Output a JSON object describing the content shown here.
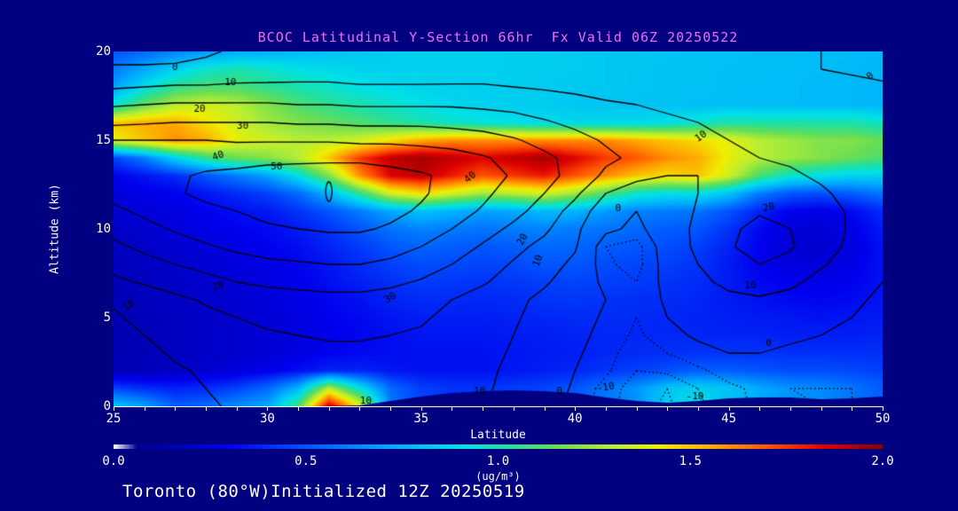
{
  "title": "BCOC Latitudinal Y-Section 66hr  Fx Valid 06Z 20250522",
  "footer": "Toronto (80°W)Initialized 12Z 20250519",
  "colors": {
    "background": "#000080",
    "title": "#ee6fee",
    "axis_text": "#ffffff",
    "contour_line": "#000000"
  },
  "axes": {
    "x": {
      "label": "Latitude",
      "min": 25,
      "max": 50,
      "major_ticks": [
        25,
        30,
        35,
        40,
        45,
        50
      ],
      "minor_step": 1
    },
    "y": {
      "label": "Altitude (km)",
      "min": 0,
      "max": 20,
      "major_ticks": [
        0,
        5,
        10,
        15,
        20
      ]
    }
  },
  "colorbar": {
    "min": 0.0,
    "max": 2.0,
    "tick_labels": [
      "0.0",
      "0.5",
      "1.0",
      "1.5",
      "2.0"
    ],
    "tick_values": [
      0.0,
      0.5,
      1.0,
      1.5,
      2.0
    ],
    "units": "(ug/m³)",
    "stops": [
      [
        0.0,
        "#ffffff"
      ],
      [
        0.06,
        "#000090"
      ],
      [
        0.3,
        "#0000ee"
      ],
      [
        0.5,
        "#0055ff"
      ],
      [
        0.72,
        "#00aaff"
      ],
      [
        0.9,
        "#00e0e8"
      ],
      [
        1.02,
        "#20e0a0"
      ],
      [
        1.15,
        "#66dd55"
      ],
      [
        1.3,
        "#b8ee33"
      ],
      [
        1.42,
        "#eeee00"
      ],
      [
        1.55,
        "#ffaa00"
      ],
      [
        1.7,
        "#ff5500"
      ],
      [
        1.85,
        "#dd0000"
      ],
      [
        2.0,
        "#880000"
      ]
    ]
  },
  "chart_data": {
    "type": "heatmap",
    "x_lats": [
      25,
      26,
      27,
      28,
      29,
      30,
      31,
      32,
      33,
      34,
      35,
      36,
      37,
      38,
      39,
      40,
      41,
      42,
      43,
      44,
      45,
      46,
      47,
      48,
      49,
      50
    ],
    "y_alts_top_down": [
      20,
      19,
      18,
      17,
      16,
      15,
      14,
      13,
      12,
      11,
      10,
      9,
      8,
      7,
      6,
      5,
      4,
      3,
      2,
      1,
      0
    ],
    "concentration_ugm3": [
      [
        0.5,
        0.55,
        0.62,
        0.68,
        0.72,
        0.75,
        0.78,
        0.8,
        0.82,
        0.84,
        0.85,
        0.85,
        0.85,
        0.84,
        0.84,
        0.83,
        0.82,
        0.82,
        0.81,
        0.8,
        0.8,
        0.79,
        0.79,
        0.78,
        0.78,
        0.77
      ],
      [
        0.6,
        0.72,
        0.85,
        0.95,
        1.0,
        0.95,
        0.9,
        0.88,
        0.86,
        0.85,
        0.85,
        0.85,
        0.85,
        0.84,
        0.84,
        0.83,
        0.82,
        0.81,
        0.8,
        0.8,
        0.79,
        0.79,
        0.78,
        0.78,
        0.77,
        0.76
      ],
      [
        0.7,
        0.9,
        1.05,
        1.1,
        1.1,
        1.05,
        1.0,
        0.95,
        0.9,
        0.88,
        0.86,
        0.85,
        0.84,
        0.84,
        0.83,
        0.82,
        0.82,
        0.81,
        0.8,
        0.8,
        0.79,
        0.78,
        0.78,
        0.77,
        0.77,
        0.76
      ],
      [
        0.95,
        1.15,
        1.3,
        1.35,
        1.3,
        1.2,
        1.1,
        1.05,
        1.0,
        0.95,
        0.9,
        0.87,
        0.85,
        0.84,
        0.83,
        0.82,
        0.81,
        0.8,
        0.8,
        0.79,
        0.79,
        0.78,
        0.78,
        0.77,
        0.77,
        0.76
      ],
      [
        1.5,
        1.55,
        1.55,
        1.45,
        1.35,
        1.25,
        1.2,
        1.15,
        1.1,
        1.05,
        1.0,
        0.95,
        0.92,
        0.9,
        0.88,
        0.87,
        0.87,
        0.88,
        0.9,
        0.95,
        1.0,
        1.0,
        1.0,
        1.0,
        1.0,
        0.95
      ],
      [
        1.4,
        1.5,
        1.6,
        1.55,
        1.4,
        1.35,
        1.3,
        1.3,
        1.35,
        1.45,
        1.55,
        1.6,
        1.6,
        1.6,
        1.6,
        1.6,
        1.6,
        1.55,
        1.5,
        1.45,
        1.4,
        1.3,
        1.25,
        1.2,
        1.2,
        1.15
      ],
      [
        0.45,
        0.6,
        0.85,
        1.05,
        1.15,
        1.2,
        1.3,
        1.5,
        1.75,
        1.9,
        1.95,
        1.9,
        1.85,
        1.9,
        1.95,
        1.85,
        1.75,
        1.7,
        1.6,
        1.55,
        1.4,
        1.3,
        1.25,
        1.2,
        1.15,
        1.1
      ],
      [
        0.3,
        0.35,
        0.4,
        0.5,
        0.6,
        0.7,
        0.9,
        1.2,
        1.6,
        1.85,
        1.9,
        1.8,
        1.7,
        1.75,
        1.8,
        1.7,
        1.6,
        1.5,
        1.45,
        1.5,
        1.35,
        1.1,
        0.95,
        0.9,
        0.85,
        0.85
      ],
      [
        0.25,
        0.28,
        0.3,
        0.35,
        0.4,
        0.45,
        0.55,
        0.75,
        1.05,
        1.35,
        1.45,
        1.35,
        1.25,
        1.3,
        1.35,
        1.25,
        1.1,
        0.95,
        0.9,
        0.9,
        0.8,
        0.6,
        0.5,
        0.48,
        0.52,
        0.58
      ],
      [
        0.22,
        0.25,
        0.27,
        0.3,
        0.33,
        0.36,
        0.42,
        0.5,
        0.6,
        0.72,
        0.8,
        0.75,
        0.7,
        0.72,
        0.78,
        0.75,
        0.68,
        0.62,
        0.6,
        0.58,
        0.5,
        0.38,
        0.3,
        0.28,
        0.32,
        0.4
      ],
      [
        0.2,
        0.22,
        0.25,
        0.28,
        0.3,
        0.32,
        0.36,
        0.42,
        0.5,
        0.58,
        0.62,
        0.6,
        0.58,
        0.6,
        0.62,
        0.6,
        0.58,
        0.55,
        0.52,
        0.5,
        0.42,
        0.32,
        0.25,
        0.24,
        0.28,
        0.36
      ],
      [
        0.18,
        0.2,
        0.22,
        0.25,
        0.28,
        0.3,
        0.33,
        0.38,
        0.44,
        0.5,
        0.54,
        0.52,
        0.5,
        0.52,
        0.55,
        0.54,
        0.52,
        0.5,
        0.48,
        0.45,
        0.38,
        0.3,
        0.24,
        0.22,
        0.26,
        0.34
      ],
      [
        0.17,
        0.19,
        0.21,
        0.23,
        0.26,
        0.28,
        0.31,
        0.35,
        0.4,
        0.45,
        0.48,
        0.47,
        0.46,
        0.47,
        0.5,
        0.5,
        0.48,
        0.46,
        0.45,
        0.42,
        0.36,
        0.3,
        0.26,
        0.25,
        0.28,
        0.34
      ],
      [
        0.16,
        0.18,
        0.2,
        0.22,
        0.24,
        0.26,
        0.29,
        0.33,
        0.37,
        0.41,
        0.44,
        0.43,
        0.42,
        0.43,
        0.45,
        0.46,
        0.45,
        0.44,
        0.42,
        0.4,
        0.36,
        0.32,
        0.29,
        0.28,
        0.3,
        0.34
      ],
      [
        0.16,
        0.17,
        0.19,
        0.21,
        0.23,
        0.25,
        0.28,
        0.31,
        0.34,
        0.38,
        0.4,
        0.4,
        0.39,
        0.4,
        0.42,
        0.43,
        0.42,
        0.41,
        0.4,
        0.39,
        0.36,
        0.34,
        0.32,
        0.31,
        0.32,
        0.35
      ],
      [
        0.15,
        0.17,
        0.18,
        0.2,
        0.22,
        0.24,
        0.27,
        0.3,
        0.32,
        0.35,
        0.37,
        0.37,
        0.37,
        0.38,
        0.39,
        0.4,
        0.4,
        0.4,
        0.39,
        0.38,
        0.37,
        0.36,
        0.35,
        0.34,
        0.35,
        0.36
      ],
      [
        0.15,
        0.16,
        0.18,
        0.2,
        0.22,
        0.24,
        0.26,
        0.29,
        0.31,
        0.33,
        0.35,
        0.35,
        0.35,
        0.36,
        0.37,
        0.38,
        0.39,
        0.39,
        0.39,
        0.39,
        0.38,
        0.38,
        0.37,
        0.37,
        0.37,
        0.38
      ],
      [
        0.15,
        0.16,
        0.18,
        0.2,
        0.22,
        0.24,
        0.27,
        0.3,
        0.32,
        0.33,
        0.34,
        0.34,
        0.34,
        0.35,
        0.36,
        0.37,
        0.39,
        0.4,
        0.41,
        0.42,
        0.42,
        0.42,
        0.41,
        0.41,
        0.41,
        0.41
      ],
      [
        0.16,
        0.17,
        0.19,
        0.22,
        0.25,
        0.28,
        0.33,
        0.38,
        0.38,
        0.35,
        0.34,
        0.34,
        0.34,
        0.35,
        0.37,
        0.39,
        0.42,
        0.45,
        0.48,
        0.52,
        0.52,
        0.5,
        0.48,
        0.48,
        0.47,
        0.45
      ],
      [
        0.45,
        0.4,
        0.38,
        0.4,
        0.45,
        0.55,
        0.75,
        1.3,
        0.9,
        0.55,
        0.45,
        0.42,
        0.42,
        0.44,
        0.46,
        0.5,
        0.58,
        0.66,
        0.8,
        0.85,
        0.8,
        0.72,
        0.66,
        0.64,
        0.58,
        0.52
      ],
      [
        0.8,
        0.7,
        0.52,
        0.55,
        0.65,
        0.72,
        1.1,
        1.9,
        1.4,
        0.6,
        0.45,
        0.42,
        0.42,
        0.44,
        0.46,
        0.5,
        0.58,
        0.66,
        0.85,
        0.9,
        0.8,
        0.72,
        0.66,
        0.64,
        0.58,
        0.52
      ]
    ],
    "contour_field": [
      [
        -3,
        -3,
        -2,
        -1,
        1,
        2,
        3,
        3,
        1,
        1,
        1,
        2,
        2,
        2,
        1,
        1,
        1,
        1,
        1,
        2,
        2,
        2,
        1,
        0,
        -1,
        -2
      ],
      [
        1,
        1,
        1,
        2,
        3,
        4,
        5,
        5,
        4,
        4,
        4,
        5,
        5,
        5,
        4,
        4,
        3,
        3,
        3,
        3,
        3,
        2,
        1,
        0,
        -1,
        -2
      ],
      [
        9,
        10,
        11,
        11,
        12,
        12,
        12,
        12,
        11,
        11,
        11,
        11,
        11,
        10,
        9,
        8,
        7,
        6,
        5,
        5,
        4,
        4,
        3,
        3,
        2,
        1
      ],
      [
        19,
        20,
        21,
        21,
        21,
        21,
        20,
        20,
        19,
        19,
        19,
        19,
        18,
        17,
        15,
        13,
        11,
        10,
        9,
        8,
        7,
        7,
        6,
        5,
        4,
        3
      ],
      [
        28,
        29,
        30,
        30,
        30,
        30,
        29,
        29,
        28,
        28,
        28,
        27,
        26,
        24,
        21,
        18,
        15,
        13,
        11,
        10,
        9,
        8,
        7,
        6,
        5,
        4
      ],
      [
        40,
        40,
        40,
        40,
        39,
        39,
        39,
        39,
        38,
        38,
        37,
        36,
        34,
        31,
        27,
        23,
        19,
        16,
        13,
        11,
        10,
        9,
        8,
        7,
        6,
        5
      ],
      [
        44,
        45,
        46,
        47,
        47,
        48,
        48,
        48,
        48,
        47,
        46,
        44,
        41,
        37,
        32,
        27,
        22,
        18,
        14,
        12,
        11,
        10,
        9,
        8,
        7,
        6
      ],
      [
        45,
        47,
        49,
        51,
        52,
        53,
        54,
        55,
        55,
        53,
        51,
        48,
        44,
        39,
        33,
        27,
        18,
        12,
        10,
        10,
        11,
        12,
        11,
        9,
        7,
        6
      ],
      [
        43,
        46,
        49,
        52,
        54,
        55,
        56,
        56,
        56,
        54,
        51,
        47,
        42,
        36,
        30,
        22,
        10,
        6,
        6,
        10,
        13,
        15,
        14,
        11,
        8,
        6
      ],
      [
        38,
        42,
        45,
        48,
        50,
        52,
        53,
        54,
        54,
        52,
        49,
        44,
        39,
        33,
        26,
        16,
        4,
        0,
        4,
        11,
        16,
        19,
        17,
        13,
        9,
        6
      ],
      [
        33,
        37,
        41,
        44,
        47,
        49,
        50,
        51,
        51,
        49,
        45,
        40,
        34,
        28,
        22,
        12,
        2,
        -2,
        5,
        12,
        18,
        23,
        20,
        14,
        9,
        5
      ],
      [
        28,
        32,
        36,
        39,
        42,
        44,
        45,
        46,
        46,
        44,
        40,
        35,
        29,
        23,
        17,
        11,
        -5,
        -7,
        4,
        12,
        19,
        24,
        21,
        14,
        8,
        4
      ],
      [
        23,
        27,
        30,
        33,
        36,
        38,
        39,
        40,
        40,
        38,
        35,
        30,
        25,
        19,
        14,
        8,
        -4,
        -7,
        3,
        10,
        16,
        20,
        17,
        11,
        6,
        2
      ],
      [
        18,
        21,
        24,
        27,
        30,
        32,
        33,
        34,
        34,
        32,
        29,
        25,
        21,
        16,
        11,
        6,
        -2,
        -5,
        2,
        8,
        12,
        14,
        12,
        7,
        3,
        0
      ],
      [
        11,
        14,
        18,
        21,
        23,
        25,
        26,
        27,
        27,
        26,
        23,
        20,
        16,
        12,
        8,
        4,
        0,
        -4,
        1,
        5,
        8,
        9,
        7,
        4,
        1,
        -1
      ],
      [
        9,
        12,
        15,
        18,
        20,
        22,
        23,
        24,
        24,
        23,
        21,
        18,
        15,
        11,
        7,
        3,
        -1,
        -5,
        0,
        3,
        5,
        5,
        4,
        2,
        0,
        -2
      ],
      [
        7,
        10,
        13,
        15,
        17,
        19,
        20,
        21,
        21,
        20,
        19,
        17,
        14,
        10,
        6,
        2,
        -2,
        -6,
        -2,
        1,
        2,
        2,
        1,
        0,
        -2,
        -3
      ],
      [
        5,
        8,
        11,
        13,
        15,
        16,
        17,
        18,
        18,
        18,
        17,
        15,
        13,
        9,
        5,
        1,
        -3,
        -8,
        -5,
        -2,
        0,
        0,
        -1,
        -2,
        -3,
        -3
      ],
      [
        4,
        6,
        9,
        11,
        13,
        14,
        15,
        16,
        16,
        16,
        15,
        14,
        12,
        8,
        4,
        0,
        -4,
        -10,
        -9,
        -6,
        -3,
        -2,
        -3,
        -4,
        -4,
        -4
      ],
      [
        2,
        5,
        8,
        10,
        12,
        13,
        14,
        15,
        15,
        15,
        14,
        13,
        11,
        8,
        4,
        -1,
        -7,
        -13,
        -15,
        -10,
        -6,
        -4,
        -5,
        -5,
        -5,
        -4
      ],
      [
        1,
        4,
        7,
        9,
        11,
        12,
        13,
        14,
        14,
        14,
        13,
        12,
        10,
        7,
        3,
        -2,
        -8,
        -13,
        -16,
        -11,
        -7,
        -4,
        -4,
        -5,
        -5,
        -4
      ]
    ],
    "contour_levels_solid": [
      0,
      10,
      20,
      30,
      40,
      50
    ],
    "contour_levels_dotted": [
      -15,
      -10,
      -5
    ],
    "terrain_km": [
      0,
      0,
      0,
      0,
      0,
      0,
      0,
      0,
      0.05,
      0.3,
      0.55,
      0.75,
      0.85,
      0.9,
      0.85,
      0.75,
      0.5,
      0.3,
      0.2,
      0.3,
      0.45,
      0.5,
      0.5,
      0.4,
      0.45,
      0.55
    ],
    "contour_labels": [
      {
        "text": "0",
        "lat": 27.0,
        "alt": 19.1,
        "rot": 0
      },
      {
        "text": "10",
        "lat": 28.8,
        "alt": 18.25,
        "rot": 0
      },
      {
        "text": "20",
        "lat": 27.8,
        "alt": 16.75,
        "rot": 0
      },
      {
        "text": "30",
        "lat": 29.2,
        "alt": 15.8,
        "rot": 0
      },
      {
        "text": "40",
        "lat": 28.4,
        "alt": 14.1,
        "rot": -20
      },
      {
        "text": "50",
        "lat": 30.3,
        "alt": 13.5,
        "rot": 0
      },
      {
        "text": "40",
        "lat": 36.6,
        "alt": 12.9,
        "rot": -40
      },
      {
        "text": "20",
        "lat": 28.4,
        "alt": 6.75,
        "rot": -15
      },
      {
        "text": "30",
        "lat": 34.0,
        "alt": 6.1,
        "rot": -30
      },
      {
        "text": "10",
        "lat": 25.5,
        "alt": 5.65,
        "rot": -35
      },
      {
        "text": "20",
        "lat": 38.3,
        "alt": 9.4,
        "rot": -60
      },
      {
        "text": "10",
        "lat": 38.8,
        "alt": 8.2,
        "rot": -70
      },
      {
        "text": "0",
        "lat": 41.4,
        "alt": 11.15,
        "rot": 0
      },
      {
        "text": "10",
        "lat": 44.1,
        "alt": 15.2,
        "rot": -35
      },
      {
        "text": "20",
        "lat": 46.3,
        "alt": 11.2,
        "rot": -15
      },
      {
        "text": "10",
        "lat": 45.7,
        "alt": 6.8,
        "rot": 0
      },
      {
        "text": "0",
        "lat": 46.3,
        "alt": 3.55,
        "rot": 0
      },
      {
        "text": "10",
        "lat": 33.2,
        "alt": 0.3,
        "rot": 0
      },
      {
        "text": "10",
        "lat": 36.9,
        "alt": 0.85,
        "rot": 0
      },
      {
        "text": "0",
        "lat": 39.5,
        "alt": 0.85,
        "rot": 0
      },
      {
        "text": "-10",
        "lat": 41.0,
        "alt": 1.05,
        "rot": -10
      },
      {
        "text": "-10",
        "lat": 43.9,
        "alt": 0.55,
        "rot": 0
      },
      {
        "text": "0",
        "lat": 49.6,
        "alt": 18.6,
        "rot": -40
      }
    ],
    "annotations": [
      {
        "type": "small-closed-contour",
        "lat": 32.0,
        "alt": 12.1
      }
    ]
  }
}
